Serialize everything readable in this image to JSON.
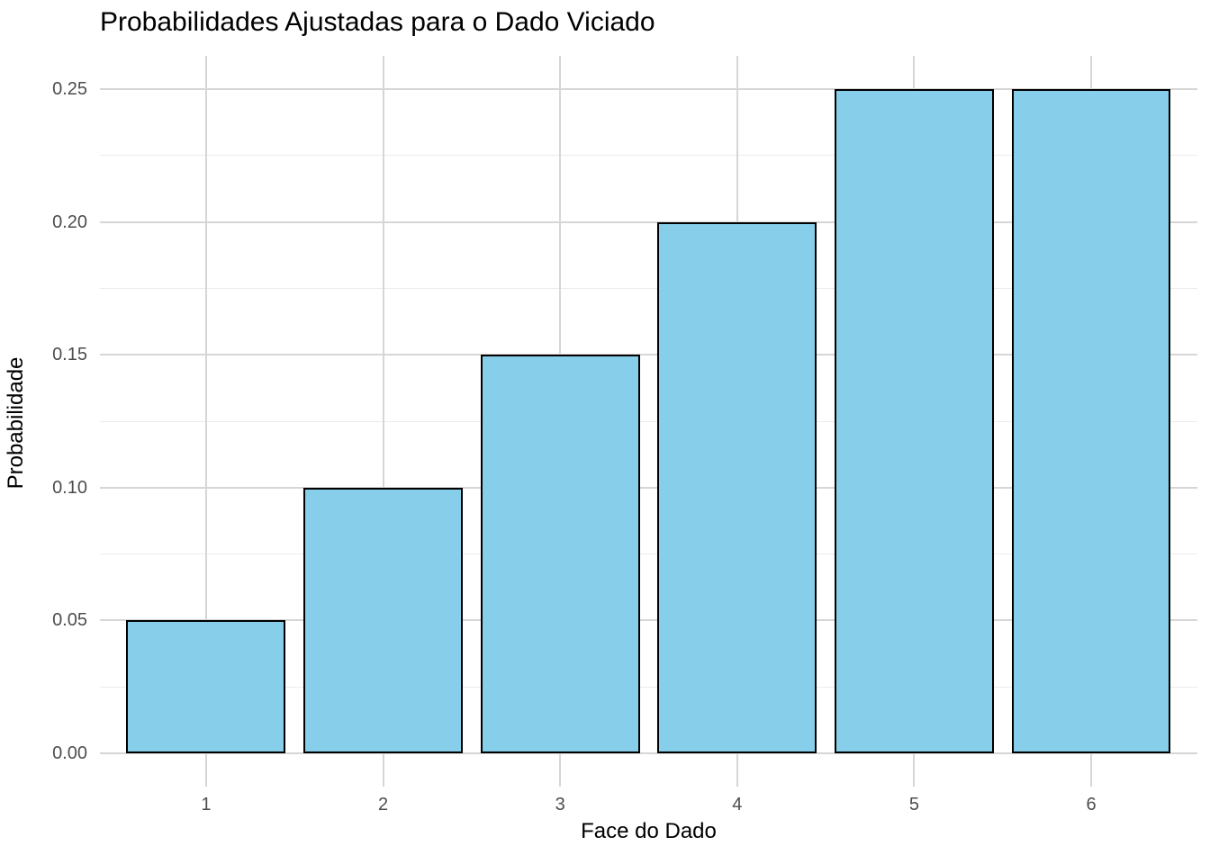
{
  "chart_data": {
    "type": "bar",
    "title": "Probabilidades Ajustadas para o Dado Viciado",
    "xlabel": "Face do Dado",
    "ylabel": "Probabilidade",
    "categories": [
      "1",
      "2",
      "3",
      "4",
      "5",
      "6"
    ],
    "values": [
      0.05,
      0.1,
      0.15,
      0.2,
      0.25,
      0.25
    ],
    "ylim": [
      0,
      0.25
    ],
    "y_major_ticks": [
      0,
      0.05,
      0.1,
      0.15,
      0.2,
      0.25
    ],
    "y_tick_labels": [
      "0.00",
      "0.05",
      "0.10",
      "0.15",
      "0.20",
      "0.25"
    ],
    "y_minor_ticks": [
      0.025,
      0.075,
      0.125,
      0.175,
      0.225
    ],
    "grid": true,
    "legend": "none",
    "bar_width_fraction": 0.9,
    "colors": {
      "bar_fill": "#87CEEB",
      "bar_stroke": "#000000",
      "grid_major": "#D6D6D6",
      "grid_minor": "#ECECEC",
      "tick_label": "#4D4D4D",
      "text": "#000000",
      "background": "#FFFFFF"
    }
  }
}
